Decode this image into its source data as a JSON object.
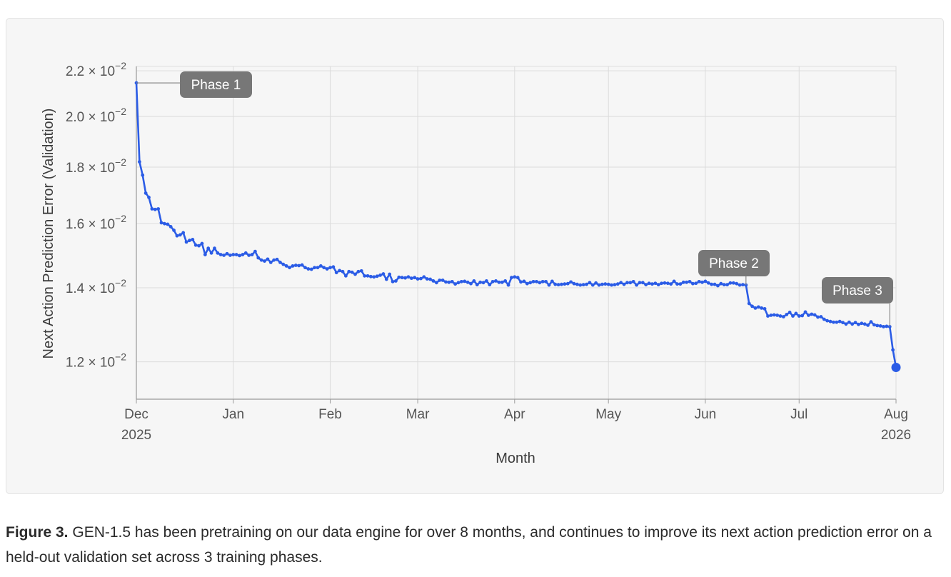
{
  "caption": {
    "figure_label": "Figure 3.",
    "text": "GEN-1.5 has been pretraining on our data engine for over 8 months, and continues to improve its next action prediction error on a held-out validation set across 3 training phases."
  },
  "chart_data": {
    "type": "line",
    "title": "",
    "xlabel": "Month",
    "ylabel": "Next Action Prediction Error (Validation)",
    "x_range": [
      "2025-12-01",
      "2026-08-01"
    ],
    "y_scale": "log",
    "ylim": [
      0.0111,
      0.0222
    ],
    "grid": true,
    "line_color": "#2b5ce6",
    "y_ticks": [
      {
        "value": 0.022,
        "mantissa": "2.2",
        "exponent": "−2"
      },
      {
        "value": 0.02,
        "mantissa": "2.0",
        "exponent": "−2"
      },
      {
        "value": 0.018,
        "mantissa": "1.8",
        "exponent": "−2"
      },
      {
        "value": 0.016,
        "mantissa": "1.6",
        "exponent": "−2"
      },
      {
        "value": 0.014,
        "mantissa": "1.4",
        "exponent": "−2"
      },
      {
        "value": 0.012,
        "mantissa": "1.2",
        "exponent": "−2"
      }
    ],
    "x_ticks": [
      {
        "date": "2025-12-01",
        "label": "Dec",
        "sublabel": "2025"
      },
      {
        "date": "2026-01-01",
        "label": "Jan",
        "sublabel": ""
      },
      {
        "date": "2026-02-01",
        "label": "Feb",
        "sublabel": ""
      },
      {
        "date": "2026-03-01",
        "label": "Mar",
        "sublabel": ""
      },
      {
        "date": "2026-04-01",
        "label": "Apr",
        "sublabel": ""
      },
      {
        "date": "2026-05-01",
        "label": "May",
        "sublabel": ""
      },
      {
        "date": "2026-06-01",
        "label": "Jun",
        "sublabel": ""
      },
      {
        "date": "2026-07-01",
        "label": "Jul",
        "sublabel": ""
      },
      {
        "date": "2026-08-01",
        "label": "Aug",
        "sublabel": "2026"
      }
    ],
    "annotations": [
      {
        "label": "Phase 1",
        "date": "2025-12-01",
        "value": 0.02145
      },
      {
        "label": "Phase 2",
        "date": "2026-06-14",
        "value": 0.01408
      },
      {
        "label": "Phase 3",
        "date": "2026-07-30",
        "value": 0.01291
      }
    ],
    "highlight_point": {
      "date": "2026-08-01",
      "value": 0.01186
    },
    "series": [
      {
        "points": [
          [
            "2025-12-01",
            0.02145
          ],
          [
            "2025-12-02",
            0.0182
          ],
          [
            "2025-12-03",
            0.0177
          ],
          [
            "2025-12-04",
            0.01705
          ],
          [
            "2025-12-05",
            0.0169
          ],
          [
            "2025-12-06",
            0.0165
          ],
          [
            "2025-12-07",
            0.01648
          ],
          [
            "2025-12-08",
            0.0165
          ],
          [
            "2025-12-09",
            0.01603
          ],
          [
            "2025-12-10",
            0.016
          ],
          [
            "2025-12-11",
            0.01598
          ],
          [
            "2025-12-12",
            0.0159
          ],
          [
            "2025-12-13",
            0.01578
          ],
          [
            "2025-12-14",
            0.0156
          ],
          [
            "2025-12-15",
            0.01563
          ],
          [
            "2025-12-16",
            0.0157
          ],
          [
            "2025-12-17",
            0.0154
          ],
          [
            "2025-12-18",
            0.01545
          ],
          [
            "2025-12-19",
            0.01548
          ],
          [
            "2025-12-20",
            0.0153
          ],
          [
            "2025-12-21",
            0.01528
          ],
          [
            "2025-12-22",
            0.01535
          ],
          [
            "2025-12-23",
            0.015
          ],
          [
            "2025-12-24",
            0.0152
          ],
          [
            "2025-12-25",
            0.01505
          ],
          [
            "2025-12-26",
            0.0152
          ],
          [
            "2025-12-27",
            0.01505
          ],
          [
            "2025-12-28",
            0.015
          ],
          [
            "2025-12-29",
            0.01498
          ],
          [
            "2025-12-30",
            0.01503
          ],
          [
            "2025-12-31",
            0.01498
          ],
          [
            "2026-01-01",
            0.015
          ],
          [
            "2026-01-02",
            0.015
          ],
          [
            "2026-01-03",
            0.01497
          ],
          [
            "2026-01-04",
            0.015
          ],
          [
            "2026-01-05",
            0.01505
          ],
          [
            "2026-01-06",
            0.01498
          ],
          [
            "2026-01-07",
            0.015
          ],
          [
            "2026-01-08",
            0.0151
          ],
          [
            "2026-01-09",
            0.0149
          ],
          [
            "2026-01-10",
            0.01483
          ],
          [
            "2026-01-11",
            0.0148
          ],
          [
            "2026-01-12",
            0.01486
          ],
          [
            "2026-01-13",
            0.01476
          ],
          [
            "2026-01-14",
            0.01483
          ],
          [
            "2026-01-15",
            0.01485
          ],
          [
            "2026-01-16",
            0.01476
          ],
          [
            "2026-01-17",
            0.0147
          ],
          [
            "2026-01-18",
            0.01465
          ],
          [
            "2026-01-19",
            0.0146
          ],
          [
            "2026-01-20",
            0.01465
          ],
          [
            "2026-01-21",
            0.01467
          ],
          [
            "2026-01-22",
            0.01466
          ],
          [
            "2026-01-23",
            0.01468
          ],
          [
            "2026-01-24",
            0.0146
          ],
          [
            "2026-01-25",
            0.01456
          ],
          [
            "2026-01-26",
            0.01455
          ],
          [
            "2026-01-27",
            0.0146
          ],
          [
            "2026-01-28",
            0.0146
          ],
          [
            "2026-01-29",
            0.01465
          ],
          [
            "2026-01-30",
            0.0146
          ],
          [
            "2026-01-31",
            0.01456
          ],
          [
            "2026-02-01",
            0.0146
          ],
          [
            "2026-02-02",
            0.01462
          ],
          [
            "2026-02-03",
            0.01445
          ],
          [
            "2026-02-04",
            0.01451
          ],
          [
            "2026-02-05",
            0.01448
          ],
          [
            "2026-02-06",
            0.01435
          ],
          [
            "2026-02-07",
            0.01448
          ],
          [
            "2026-02-08",
            0.01446
          ],
          [
            "2026-02-09",
            0.0144
          ],
          [
            "2026-02-10",
            0.01448
          ],
          [
            "2026-02-11",
            0.0145
          ],
          [
            "2026-02-12",
            0.01435
          ],
          [
            "2026-02-13",
            0.01435
          ],
          [
            "2026-02-14",
            0.01433
          ],
          [
            "2026-02-15",
            0.01432
          ],
          [
            "2026-02-16",
            0.01434
          ],
          [
            "2026-02-17",
            0.01437
          ],
          [
            "2026-02-18",
            0.01441
          ],
          [
            "2026-02-19",
            0.01425
          ],
          [
            "2026-02-20",
            0.0144
          ],
          [
            "2026-02-21",
            0.01418
          ],
          [
            "2026-02-22",
            0.0142
          ],
          [
            "2026-02-23",
            0.01431
          ],
          [
            "2026-02-24",
            0.0143
          ],
          [
            "2026-02-25",
            0.01429
          ],
          [
            "2026-02-26",
            0.01432
          ],
          [
            "2026-02-27",
            0.01428
          ],
          [
            "2026-02-28",
            0.0143
          ],
          [
            "2026-03-01",
            0.01426
          ],
          [
            "2026-03-02",
            0.01427
          ],
          [
            "2026-03-03",
            0.01432
          ],
          [
            "2026-03-04",
            0.01426
          ],
          [
            "2026-03-05",
            0.01425
          ],
          [
            "2026-03-06",
            0.0142
          ],
          [
            "2026-03-07",
            0.01415
          ],
          [
            "2026-03-08",
            0.01422
          ],
          [
            "2026-03-09",
            0.01422
          ],
          [
            "2026-03-10",
            0.01417
          ],
          [
            "2026-03-11",
            0.01416
          ],
          [
            "2026-03-12",
            0.01418
          ],
          [
            "2026-03-13",
            0.01411
          ],
          [
            "2026-03-14",
            0.01415
          ],
          [
            "2026-03-15",
            0.01418
          ],
          [
            "2026-03-16",
            0.01419
          ],
          [
            "2026-03-17",
            0.01416
          ],
          [
            "2026-03-18",
            0.01412
          ],
          [
            "2026-03-19",
            0.0142
          ],
          [
            "2026-03-20",
            0.01409
          ],
          [
            "2026-03-21",
            0.01416
          ],
          [
            "2026-03-22",
            0.01415
          ],
          [
            "2026-03-23",
            0.0142
          ],
          [
            "2026-03-24",
            0.01409
          ],
          [
            "2026-03-25",
            0.01418
          ],
          [
            "2026-03-26",
            0.0142
          ],
          [
            "2026-03-27",
            0.01416
          ],
          [
            "2026-03-28",
            0.01416
          ],
          [
            "2026-03-29",
            0.0142
          ],
          [
            "2026-03-30",
            0.01408
          ],
          [
            "2026-03-31",
            0.0143
          ],
          [
            "2026-04-01",
            0.01432
          ],
          [
            "2026-04-02",
            0.0143
          ],
          [
            "2026-04-03",
            0.01417
          ],
          [
            "2026-04-04",
            0.01419
          ],
          [
            "2026-04-05",
            0.01412
          ],
          [
            "2026-04-06",
            0.01415
          ],
          [
            "2026-04-07",
            0.01418
          ],
          [
            "2026-04-08",
            0.01418
          ],
          [
            "2026-04-09",
            0.01415
          ],
          [
            "2026-04-10",
            0.01418
          ],
          [
            "2026-04-11",
            0.01418
          ],
          [
            "2026-04-12",
            0.01408
          ],
          [
            "2026-04-13",
            0.01419
          ],
          [
            "2026-04-14",
            0.0141
          ],
          [
            "2026-04-15",
            0.01409
          ],
          [
            "2026-04-16",
            0.0141
          ],
          [
            "2026-04-17",
            0.01411
          ],
          [
            "2026-04-18",
            0.01412
          ],
          [
            "2026-04-19",
            0.01417
          ],
          [
            "2026-04-20",
            0.01412
          ],
          [
            "2026-04-21",
            0.0141
          ],
          [
            "2026-04-22",
            0.01408
          ],
          [
            "2026-04-23",
            0.01409
          ],
          [
            "2026-04-24",
            0.0141
          ],
          [
            "2026-04-25",
            0.01415
          ],
          [
            "2026-04-26",
            0.01408
          ],
          [
            "2026-04-27",
            0.01414
          ],
          [
            "2026-04-28",
            0.01408
          ],
          [
            "2026-04-29",
            0.0141
          ],
          [
            "2026-04-30",
            0.01411
          ],
          [
            "2026-05-01",
            0.0141
          ],
          [
            "2026-05-02",
            0.01408
          ],
          [
            "2026-05-03",
            0.01409
          ],
          [
            "2026-05-04",
            0.01411
          ],
          [
            "2026-05-05",
            0.01415
          ],
          [
            "2026-05-06",
            0.0141
          ],
          [
            "2026-05-07",
            0.01415
          ],
          [
            "2026-05-08",
            0.01415
          ],
          [
            "2026-05-09",
            0.01418
          ],
          [
            "2026-05-10",
            0.01408
          ],
          [
            "2026-05-11",
            0.01415
          ],
          [
            "2026-05-12",
            0.01415
          ],
          [
            "2026-05-13",
            0.01409
          ],
          [
            "2026-05-14",
            0.01413
          ],
          [
            "2026-05-15",
            0.01411
          ],
          [
            "2026-05-16",
            0.01413
          ],
          [
            "2026-05-17",
            0.01409
          ],
          [
            "2026-05-18",
            0.01413
          ],
          [
            "2026-05-19",
            0.01414
          ],
          [
            "2026-05-20",
            0.01413
          ],
          [
            "2026-05-21",
            0.01411
          ],
          [
            "2026-05-22",
            0.01419
          ],
          [
            "2026-05-23",
            0.01411
          ],
          [
            "2026-05-24",
            0.01411
          ],
          [
            "2026-05-25",
            0.01416
          ],
          [
            "2026-05-26",
            0.01416
          ],
          [
            "2026-05-27",
            0.01418
          ],
          [
            "2026-05-28",
            0.01412
          ],
          [
            "2026-05-29",
            0.01413
          ],
          [
            "2026-05-30",
            0.01418
          ],
          [
            "2026-05-31",
            0.01416
          ],
          [
            "2026-06-01",
            0.01419
          ],
          [
            "2026-06-02",
            0.01414
          ],
          [
            "2026-06-03",
            0.0141
          ],
          [
            "2026-06-04",
            0.0141
          ],
          [
            "2026-06-05",
            0.01406
          ],
          [
            "2026-06-06",
            0.01412
          ],
          [
            "2026-06-07",
            0.01409
          ],
          [
            "2026-06-08",
            0.01409
          ],
          [
            "2026-06-09",
            0.01414
          ],
          [
            "2026-06-10",
            0.01414
          ],
          [
            "2026-06-11",
            0.01412
          ],
          [
            "2026-06-12",
            0.01408
          ],
          [
            "2026-06-13",
            0.01409
          ],
          [
            "2026-06-14",
            0.01408
          ],
          [
            "2026-06-15",
            0.01355
          ],
          [
            "2026-06-16",
            0.01347
          ],
          [
            "2026-06-17",
            0.01342
          ],
          [
            "2026-06-18",
            0.01345
          ],
          [
            "2026-06-19",
            0.01342
          ],
          [
            "2026-06-20",
            0.0134
          ],
          [
            "2026-06-21",
            0.0132
          ],
          [
            "2026-06-22",
            0.01322
          ],
          [
            "2026-06-23",
            0.01323
          ],
          [
            "2026-06-24",
            0.01322
          ],
          [
            "2026-06-25",
            0.0132
          ],
          [
            "2026-06-26",
            0.01318
          ],
          [
            "2026-06-27",
            0.01324
          ],
          [
            "2026-06-28",
            0.0133
          ],
          [
            "2026-06-29",
            0.0132
          ],
          [
            "2026-06-30",
            0.01327
          ],
          [
            "2026-07-01",
            0.0132
          ],
          [
            "2026-07-02",
            0.01321
          ],
          [
            "2026-07-03",
            0.01331
          ],
          [
            "2026-07-04",
            0.01322
          ],
          [
            "2026-07-05",
            0.01325
          ],
          [
            "2026-07-06",
            0.01323
          ],
          [
            "2026-07-07",
            0.01317
          ],
          [
            "2026-07-08",
            0.01318
          ],
          [
            "2026-07-09",
            0.01311
          ],
          [
            "2026-07-10",
            0.01307
          ],
          [
            "2026-07-11",
            0.01305
          ],
          [
            "2026-07-12",
            0.01303
          ],
          [
            "2026-07-13",
            0.01303
          ],
          [
            "2026-07-14",
            0.01305
          ],
          [
            "2026-07-15",
            0.01302
          ],
          [
            "2026-07-16",
            0.01298
          ],
          [
            "2026-07-17",
            0.01303
          ],
          [
            "2026-07-18",
            0.01298
          ],
          [
            "2026-07-19",
            0.01302
          ],
          [
            "2026-07-20",
            0.01297
          ],
          [
            "2026-07-21",
            0.013
          ],
          [
            "2026-07-22",
            0.01298
          ],
          [
            "2026-07-23",
            0.01295
          ],
          [
            "2026-07-24",
            0.01304
          ],
          [
            "2026-07-25",
            0.01296
          ],
          [
            "2026-07-26",
            0.01294
          ],
          [
            "2026-07-27",
            0.01293
          ],
          [
            "2026-07-28",
            0.01291
          ],
          [
            "2026-07-29",
            0.01292
          ],
          [
            "2026-07-30",
            0.01291
          ],
          [
            "2026-07-31",
            0.0123
          ],
          [
            "2026-08-01",
            0.01186
          ]
        ]
      }
    ]
  }
}
